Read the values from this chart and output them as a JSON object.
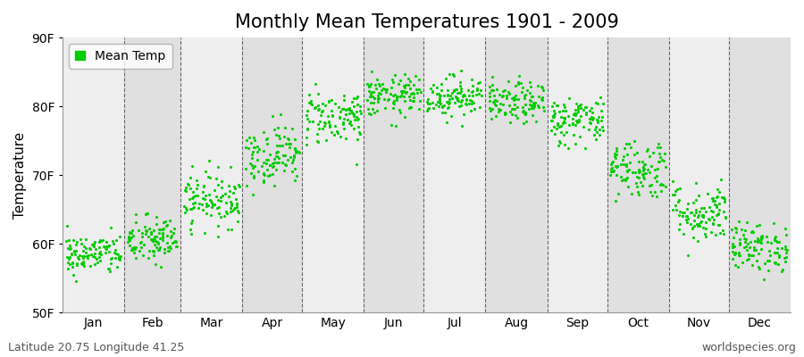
{
  "title": "Monthly Mean Temperatures 1901 - 2009",
  "ylabel": "Temperature",
  "ylim": [
    50,
    90
  ],
  "yticks": [
    50,
    60,
    70,
    80,
    90
  ],
  "ytick_labels": [
    "50F",
    "60F",
    "70F",
    "80F",
    "90F"
  ],
  "month_labels": [
    "Jan",
    "Feb",
    "Mar",
    "Apr",
    "May",
    "Jun",
    "Jul",
    "Aug",
    "Sep",
    "Oct",
    "Nov",
    "Dec"
  ],
  "dot_color": "#00cc00",
  "bg_color_light": "#eeeeee",
  "bg_color_dark": "#e0e0e0",
  "fig_bg": "#ffffff",
  "n_years": 109,
  "monthly_mean": [
    58.5,
    60.5,
    66.5,
    73.0,
    78.5,
    81.5,
    81.5,
    80.5,
    78.0,
    71.0,
    64.5,
    59.5
  ],
  "monthly_std": [
    1.5,
    1.8,
    2.0,
    2.2,
    2.0,
    1.5,
    1.5,
    1.5,
    1.8,
    2.2,
    2.2,
    1.8
  ],
  "monthly_days": [
    31,
    28,
    31,
    30,
    31,
    30,
    31,
    31,
    30,
    31,
    30,
    31
  ],
  "subtitle_left": "Latitude 20.75 Longitude 41.25",
  "subtitle_right": "worldspecies.org",
  "legend_label": "Mean Temp",
  "title_fontsize": 15,
  "axis_fontsize": 11,
  "tick_fontsize": 10,
  "subtitle_fontsize": 9
}
